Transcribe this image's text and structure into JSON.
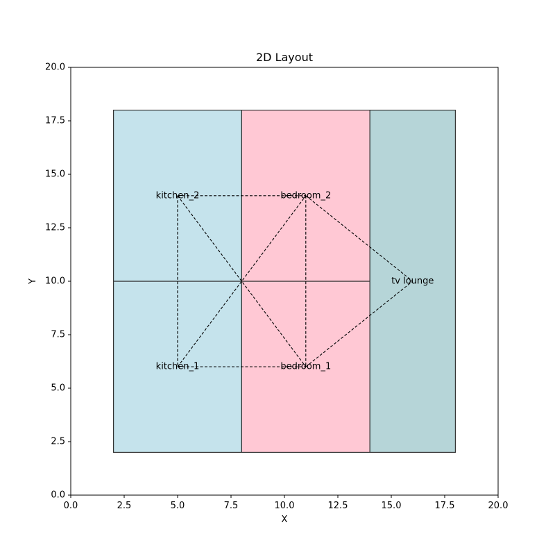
{
  "chart_data": {
    "type": "scatter",
    "title": "2D Layout",
    "xlabel": "X",
    "ylabel": "Y",
    "xlim": [
      0,
      20
    ],
    "ylim": [
      0,
      20
    ],
    "grid": false,
    "legend": "none",
    "xticks": [
      "0.0",
      "2.5",
      "5.0",
      "7.5",
      "10.0",
      "12.5",
      "15.0",
      "17.5",
      "20.0"
    ],
    "yticks": [
      "0.0",
      "2.5",
      "5.0",
      "7.5",
      "10.0",
      "12.5",
      "15.0",
      "17.5",
      "20.0"
    ],
    "rooms": [
      {
        "id": "kitchen_1",
        "x0": 2,
        "y0": 2,
        "x1": 8,
        "y1": 10,
        "color": "#c5e3ec"
      },
      {
        "id": "kitchen_2",
        "x0": 2,
        "y0": 10,
        "x1": 8,
        "y1": 18,
        "color": "#c5e3ec"
      },
      {
        "id": "bedroom_1",
        "x0": 8,
        "y0": 2,
        "x1": 14,
        "y1": 10,
        "color": "#ffc8d4"
      },
      {
        "id": "bedroom_2",
        "x0": 8,
        "y0": 10,
        "x1": 14,
        "y1": 18,
        "color": "#ffc8d4"
      },
      {
        "id": "tv_lounge",
        "x0": 14,
        "y0": 2,
        "x1": 18,
        "y1": 18,
        "color": "#b6d5d8"
      }
    ],
    "nodes": [
      {
        "id": "kitchen_1",
        "label": "kitchen_1",
        "x": 5,
        "y": 6
      },
      {
        "id": "kitchen_2",
        "label": "kitchen_2",
        "x": 5,
        "y": 14
      },
      {
        "id": "bedroom_1",
        "label": "bedroom_1",
        "x": 11,
        "y": 6
      },
      {
        "id": "bedroom_2",
        "label": "bedroom_2",
        "x": 11,
        "y": 14
      },
      {
        "id": "tv_lounge",
        "label": "tv lounge",
        "x": 16,
        "y": 10
      }
    ],
    "edges": [
      [
        "kitchen_2",
        "bedroom_2"
      ],
      [
        "kitchen_1",
        "bedroom_1"
      ],
      [
        "kitchen_2",
        "kitchen_1"
      ],
      [
        "bedroom_2",
        "bedroom_1"
      ],
      [
        "kitchen_2",
        "bedroom_1"
      ],
      [
        "kitchen_1",
        "bedroom_2"
      ],
      [
        "bedroom_2",
        "tv_lounge"
      ],
      [
        "bedroom_1",
        "tv_lounge"
      ]
    ]
  }
}
